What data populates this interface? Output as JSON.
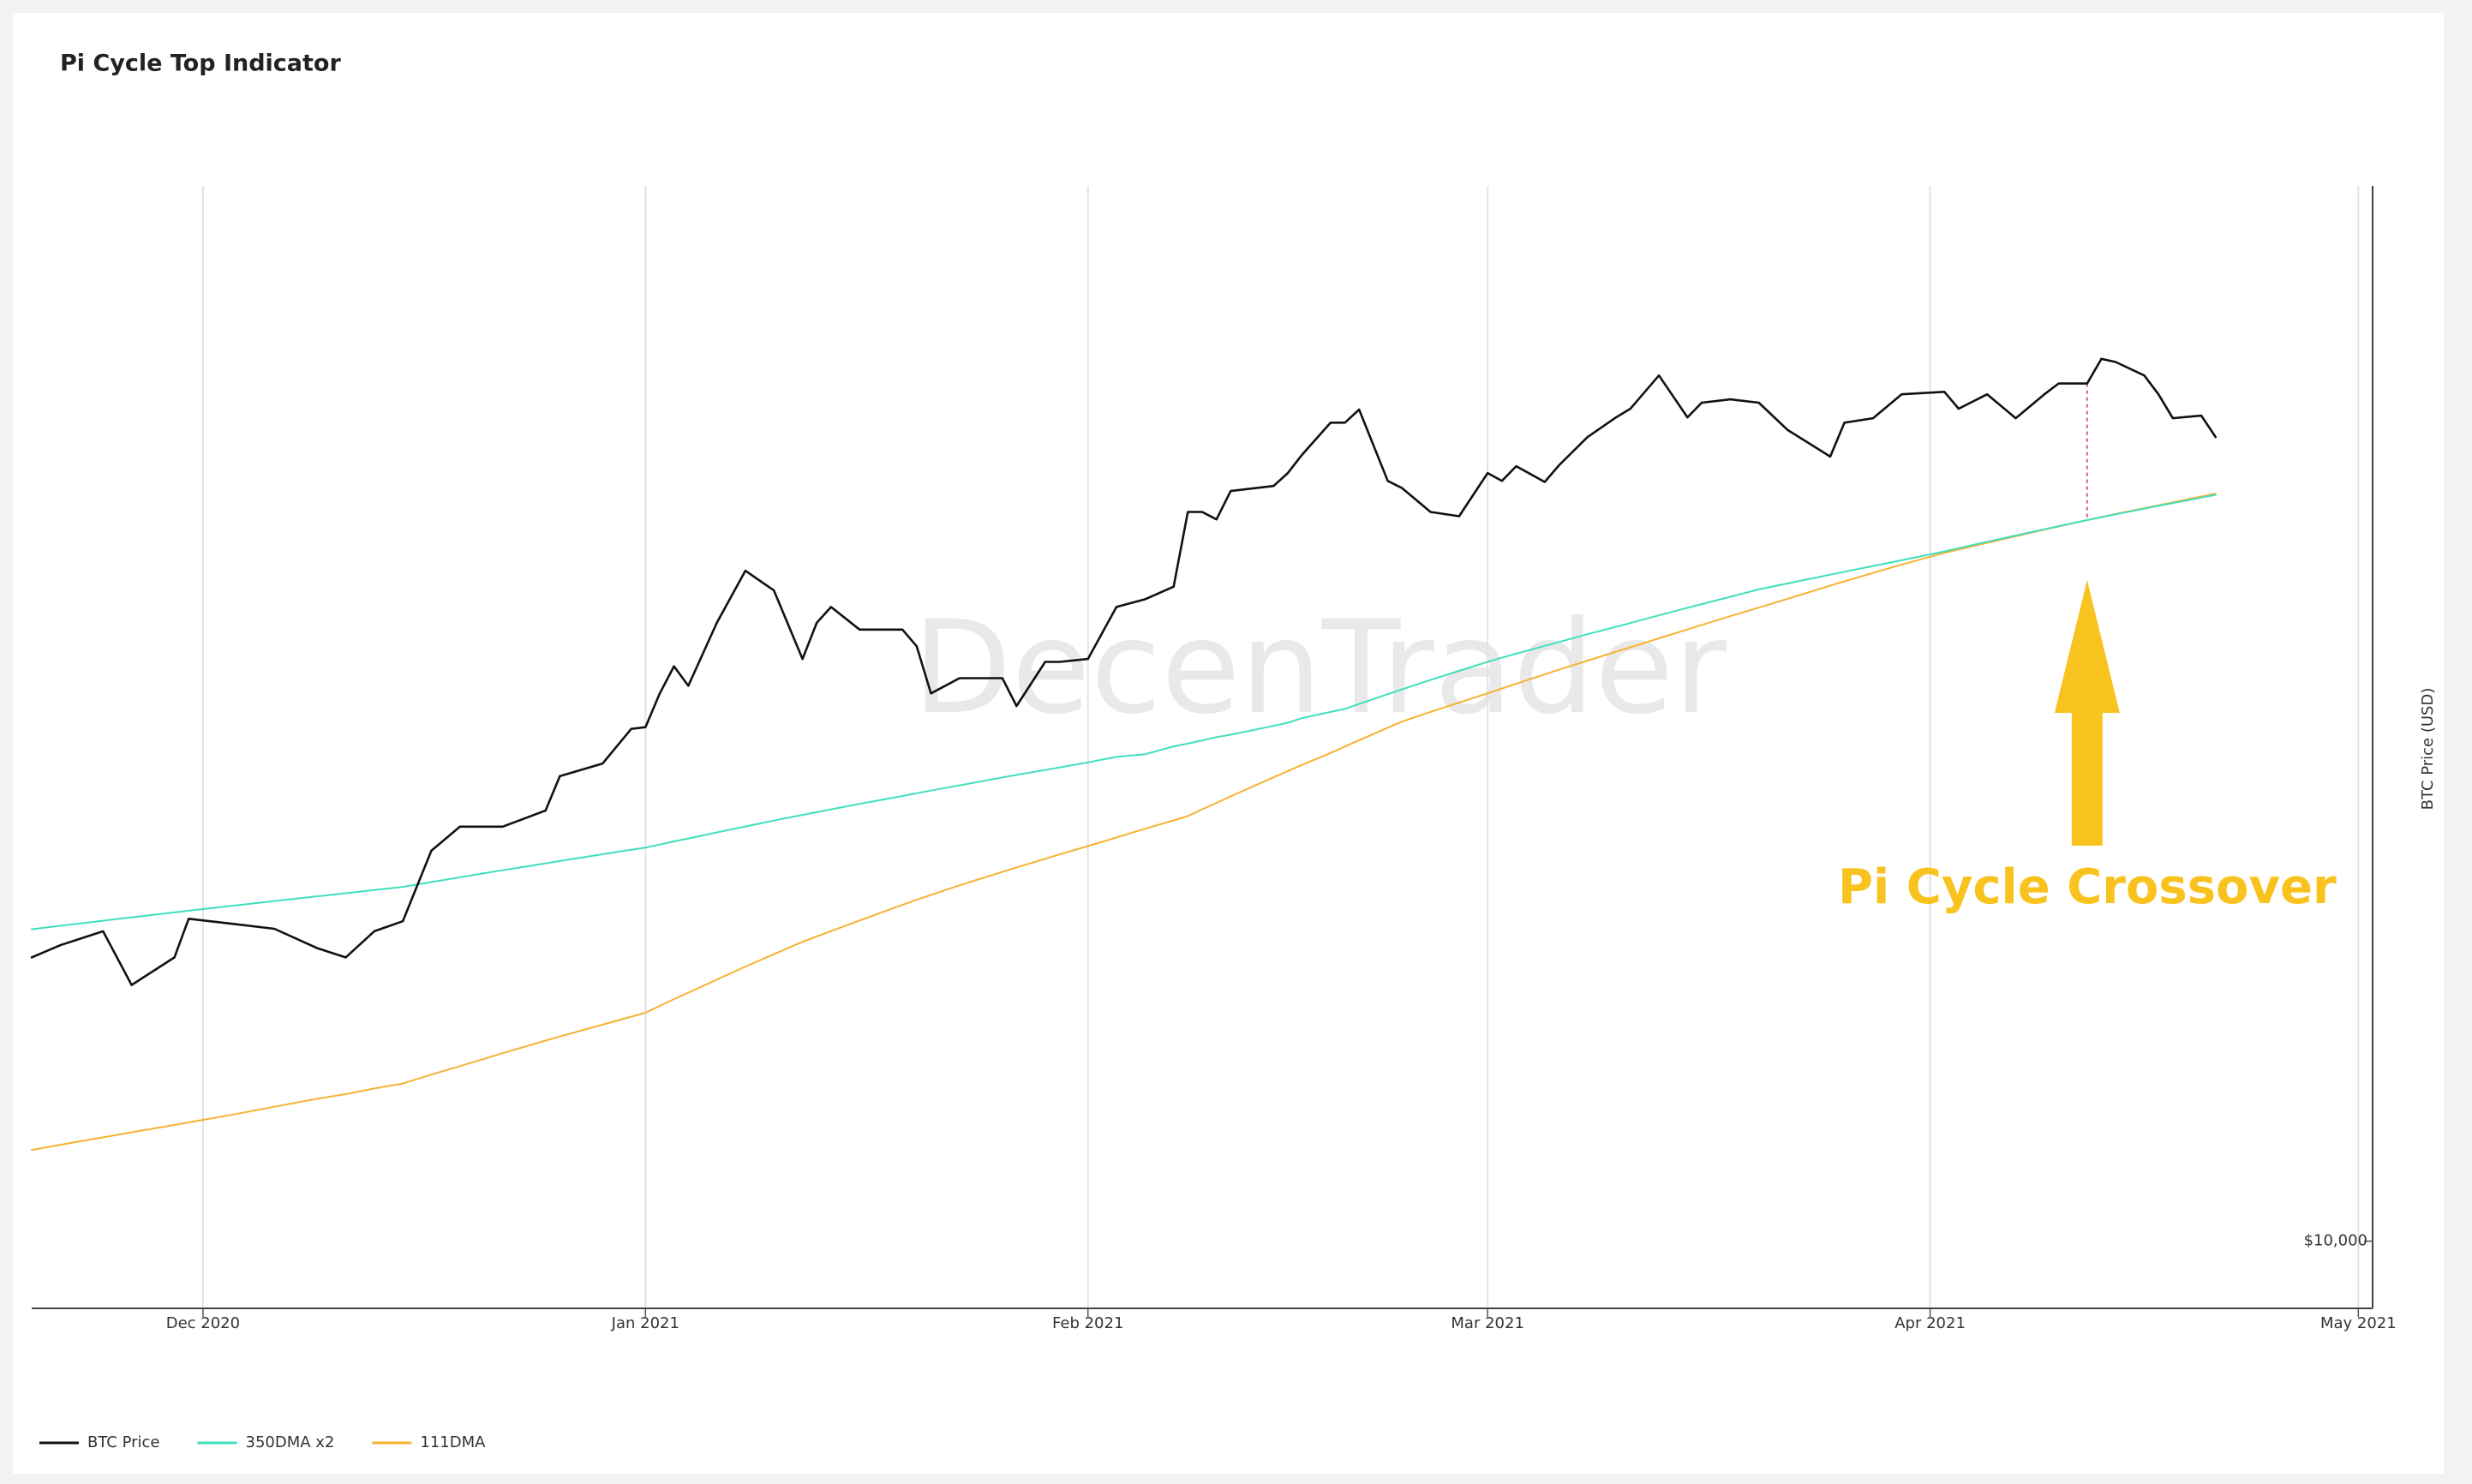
{
  "chart_data": {
    "type": "line",
    "title": "Pi Cycle Top Indicator",
    "watermark": "DecenTrader",
    "y_label": "BTC Price (USD)",
    "y_axis_side": "right",
    "log_scale": true,
    "grid": true,
    "legend_position": "bottom-left",
    "xlim": [
      "2020-11-19",
      "2021-05-02"
    ],
    "xticks": [
      {
        "value": "2020-12-01",
        "label": "Dec 2020"
      },
      {
        "value": "2021-01-01",
        "label": "Jan 2021"
      },
      {
        "value": "2021-02-01",
        "label": "Feb 2021"
      },
      {
        "value": "2021-03-01",
        "label": "Mar 2021"
      },
      {
        "value": "2021-04-01",
        "label": "Apr 2021"
      },
      {
        "value": "2021-05-01",
        "label": "May 2021"
      }
    ],
    "ylim": [
      8700,
      89000
    ],
    "yticks": [
      {
        "value": 10000,
        "label": "$10,000"
      }
    ],
    "annotation": {
      "text": "Pi Cycle Crossover",
      "x": "2021-04-12",
      "color": "#f9c31f",
      "line_color": "#e8558a"
    },
    "x": [
      "2020-11-19",
      "2020-11-21",
      "2020-11-24",
      "2020-11-26",
      "2020-11-29",
      "2020-11-30",
      "2020-12-03",
      "2020-12-06",
      "2020-12-09",
      "2020-12-11",
      "2020-12-13",
      "2020-12-15",
      "2020-12-17",
      "2020-12-19",
      "2020-12-22",
      "2020-12-25",
      "2020-12-26",
      "2020-12-29",
      "2020-12-31",
      "2021-01-01",
      "2021-01-02",
      "2021-01-03",
      "2021-01-04",
      "2021-01-06",
      "2021-01-08",
      "2021-01-10",
      "2021-01-12",
      "2021-01-13",
      "2021-01-14",
      "2021-01-16",
      "2021-01-19",
      "2021-01-20",
      "2021-01-21",
      "2021-01-23",
      "2021-01-26",
      "2021-01-27",
      "2021-01-29",
      "2021-01-30",
      "2021-02-01",
      "2021-02-03",
      "2021-02-05",
      "2021-02-07",
      "2021-02-08",
      "2021-02-09",
      "2021-02-10",
      "2021-02-11",
      "2021-02-14",
      "2021-02-15",
      "2021-02-16",
      "2021-02-18",
      "2021-02-19",
      "2021-02-20",
      "2021-02-22",
      "2021-02-23",
      "2021-02-25",
      "2021-02-27",
      "2021-03-01",
      "2021-03-02",
      "2021-03-03",
      "2021-03-05",
      "2021-03-06",
      "2021-03-08",
      "2021-03-10",
      "2021-03-11",
      "2021-03-13",
      "2021-03-15",
      "2021-03-16",
      "2021-03-18",
      "2021-03-20",
      "2021-03-22",
      "2021-03-25",
      "2021-03-26",
      "2021-03-28",
      "2021-03-30",
      "2021-04-02",
      "2021-04-03",
      "2021-04-05",
      "2021-04-07",
      "2021-04-09",
      "2021-04-10",
      "2021-04-12",
      "2021-04-13",
      "2021-04-14",
      "2021-04-16",
      "2021-04-17",
      "2021-04-18",
      "2021-04-20",
      "2021-04-21"
    ],
    "series": [
      {
        "name": "BTC Price",
        "color": "#111111",
        "width": 2.6,
        "values": [
          18000,
          18460,
          19000,
          17000,
          18000,
          19500,
          19300,
          19100,
          18350,
          18000,
          19000,
          19400,
          22450,
          23600,
          23600,
          24400,
          26200,
          26900,
          28900,
          29000,
          31100,
          32900,
          31600,
          36000,
          40100,
          38500,
          33400,
          36000,
          37200,
          35500,
          35500,
          34300,
          31100,
          32100,
          32100,
          30300,
          33200,
          33200,
          33400,
          37200,
          37800,
          38800,
          45300,
          45300,
          44600,
          47300,
          47800,
          49100,
          51000,
          54500,
          54500,
          56000,
          48300,
          47600,
          45300,
          44900,
          49100,
          48300,
          49800,
          48200,
          49900,
          52900,
          55100,
          56100,
          60100,
          55100,
          56800,
          57200,
          56800,
          53700,
          50800,
          54500,
          55000,
          57800,
          58100,
          56100,
          57800,
          55000,
          57800,
          59100,
          59100,
          62200,
          61800,
          60100,
          57800,
          55000,
          55300,
          52900
        ]
      },
      {
        "name": "350DMA x2",
        "color": "#3fdfbd",
        "width": 2,
        "values": [
          19080,
          19220,
          19420,
          19560,
          19760,
          19830,
          20030,
          20230,
          20430,
          20560,
          20700,
          20830,
          21040,
          21250,
          21560,
          21870,
          21980,
          22290,
          22500,
          22600,
          22740,
          22890,
          23030,
          23320,
          23610,
          23900,
          24180,
          24320,
          24460,
          24740,
          25150,
          25290,
          25430,
          25710,
          26130,
          26270,
          26540,
          26680,
          26960,
          27270,
          27420,
          27870,
          28030,
          28220,
          28410,
          28550,
          29080,
          29270,
          29550,
          29930,
          30120,
          30430,
          31050,
          31360,
          31980,
          32590,
          33210,
          33490,
          33770,
          34320,
          34600,
          35160,
          35710,
          35990,
          36560,
          37140,
          37420,
          38000,
          38580,
          39060,
          39780,
          40020,
          40500,
          40980,
          41740,
          42020,
          42580,
          43140,
          43700,
          43980,
          44540,
          44810,
          45070,
          45600,
          45870,
          46130,
          46660,
          46930
        ]
      },
      {
        "name": "111DMA",
        "color": "#f7b232",
        "width": 2,
        "values": [
          12080,
          12210,
          12400,
          12530,
          12720,
          12790,
          12990,
          13210,
          13430,
          13560,
          13720,
          13860,
          14120,
          14370,
          14760,
          15150,
          15280,
          15660,
          15920,
          16050,
          16280,
          16510,
          16730,
          17190,
          17660,
          18120,
          18590,
          18800,
          19010,
          19430,
          20070,
          20280,
          20490,
          20900,
          21490,
          21690,
          22080,
          22280,
          22670,
          23080,
          23500,
          23910,
          24120,
          24460,
          24790,
          25130,
          26140,
          26480,
          26820,
          27490,
          27860,
          28230,
          28970,
          29340,
          29930,
          30520,
          31110,
          31420,
          31730,
          32350,
          32670,
          33290,
          33910,
          34220,
          34860,
          35510,
          35840,
          36500,
          37150,
          37830,
          38880,
          39230,
          39920,
          40620,
          41610,
          41900,
          42490,
          43070,
          43660,
          43950,
          44540,
          44820,
          45100,
          45650,
          45930,
          46210,
          46770,
          47050
        ]
      }
    ]
  }
}
